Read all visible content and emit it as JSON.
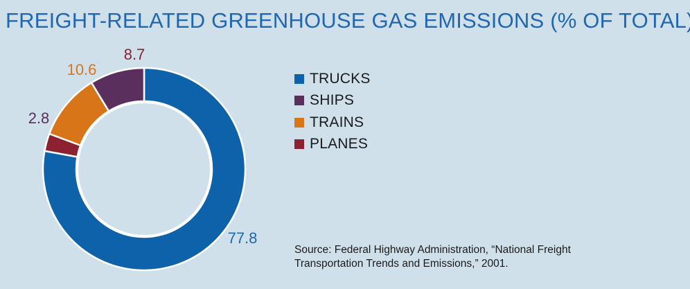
{
  "chart_data": {
    "type": "pie",
    "donut": true,
    "title": "FREIGHT-RELATED GREENHOUSE GAS EMISSIONS (% OF TOTAL)",
    "categories": [
      "TRUCKS",
      "SHIPS",
      "TRAINS",
      "PLANES"
    ],
    "values": [
      77.8,
      8.7,
      10.6,
      2.8
    ],
    "data_labels": [
      "77.8",
      "8.7",
      "10.6",
      "2.8"
    ],
    "colors": [
      "#0e62aa",
      "#5a2e5d",
      "#d87519",
      "#8b2131"
    ],
    "legend_position": "right"
  },
  "source": "Source: Federal Highway Administration, “National Freight Transportation Trends and Emissions,” 2001."
}
